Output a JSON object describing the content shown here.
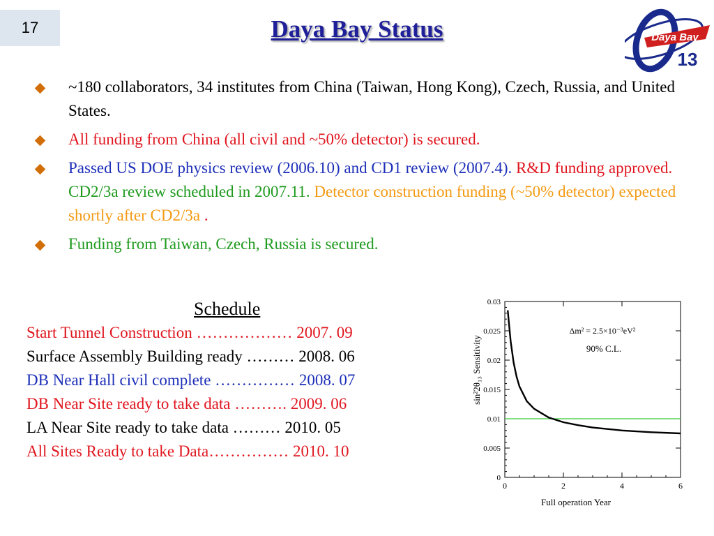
{
  "slide_number": "17",
  "title": "Daya Bay Status",
  "logo": {
    "text": "Daya Bay",
    "subscript": "13",
    "colors": {
      "ring": "#1a2a8c",
      "badge": "#d01f1f"
    }
  },
  "bullets": [
    {
      "segments": [
        {
          "text": "~180 collaborators, 34 institutes from China (Taiwan, Hong Kong), Czech, Russia, and United States.",
          "color": "black"
        }
      ]
    },
    {
      "segments": [
        {
          "text": "All funding from China (all civil and ~50% detector) is secured.",
          "color": "red"
        }
      ]
    },
    {
      "segments": [
        {
          "text": "Passed US DOE physics review (2006.10) and CD1 review (2007.4). ",
          "color": "blue"
        },
        {
          "text": "R&D funding approved. ",
          "color": "red"
        },
        {
          "text": "CD2/3a review scheduled in 2007.11. ",
          "color": "green"
        },
        {
          "text": "Detector construction funding (~50% detector) expected shortly after CD2/3a",
          "color": "orange"
        },
        {
          "text": " .",
          "color": "red"
        }
      ]
    },
    {
      "segments": [
        {
          "text": "Funding from Taiwan, Czech, Russia is secured.",
          "color": "green"
        }
      ]
    }
  ],
  "schedule": {
    "title": "Schedule",
    "rows": [
      {
        "text": "Start Tunnel Construction ……………… 2007. 09",
        "color": "red"
      },
      {
        "text": "Surface Assembly Building ready ……… 2008. 06",
        "color": "black"
      },
      {
        "text": "DB Near Hall civil complete …………… 2008. 07",
        "color": "blue"
      },
      {
        "text": "DB Near Site ready to take data  ………. 2009. 06",
        "color": "red"
      },
      {
        "text": "LA Near Site ready to take data   ……… 2010. 05",
        "color": "black"
      },
      {
        "text": "All Sites Ready to take Data……………  2010. 10",
        "color": "red"
      }
    ]
  },
  "chart_data": {
    "type": "line",
    "xlabel": "Full operation Year",
    "ylabel": "sin²2θ₁₃ Sensitivity",
    "xlim": [
      0,
      6
    ],
    "ylim": [
      0,
      0.03
    ],
    "x_ticks": [
      "0",
      "2",
      "4",
      "6"
    ],
    "y_ticks": [
      "0",
      "0.005",
      "0.01",
      "0.015",
      "0.02",
      "0.025",
      "0.03"
    ],
    "annotations": [
      "Δm² = 2.5×10⁻³eV²",
      "90% C.L."
    ],
    "reference_line": {
      "y": 0.01,
      "color": "#33cc33"
    },
    "series": [
      {
        "color": "#000000",
        "x": [
          0.1,
          0.15,
          0.2,
          0.3,
          0.4,
          0.5,
          0.75,
          1.0,
          1.5,
          2.0,
          2.5,
          3.0,
          4.0,
          5.0,
          6.0
        ],
        "y": [
          0.0285,
          0.0258,
          0.0232,
          0.0196,
          0.0172,
          0.0155,
          0.013,
          0.0117,
          0.0102,
          0.0094,
          0.0089,
          0.0085,
          0.008,
          0.0077,
          0.0075
        ]
      }
    ]
  },
  "colors": {
    "black": "#000000",
    "red": "#e0161f",
    "blue": "#1d2fb8",
    "green": "#1e9a1e",
    "orange": "#f39a13"
  }
}
